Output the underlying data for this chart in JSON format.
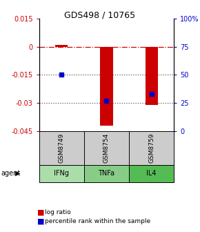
{
  "title": "GDS498 / 10765",
  "samples": [
    "GSM8749",
    "GSM8754",
    "GSM8759"
  ],
  "agents": [
    "IFNg",
    "TNFa",
    "IL4"
  ],
  "agent_colors": [
    "#aaddaa",
    "#88cc88",
    "#55bb55"
  ],
  "log_ratios": [
    0.001,
    -0.042,
    -0.031
  ],
  "percentile_ranks": [
    50,
    27,
    33
  ],
  "ylim_left": [
    -0.045,
    0.015
  ],
  "ylim_right": [
    0,
    100
  ],
  "yticks_left": [
    0.015,
    0,
    -0.015,
    -0.03,
    -0.045
  ],
  "yticks_right": [
    100,
    75,
    50,
    25,
    0
  ],
  "hlines_dotted": [
    -0.015,
    -0.03
  ],
  "hline_dashdot": 0,
  "bar_color": "#cc0000",
  "dot_color": "#0000cc",
  "bar_width": 0.28,
  "dot_size": 4,
  "gray_box_color": "#cccccc",
  "legend_log_color": "#cc0000",
  "legend_pct_color": "#0000cc"
}
